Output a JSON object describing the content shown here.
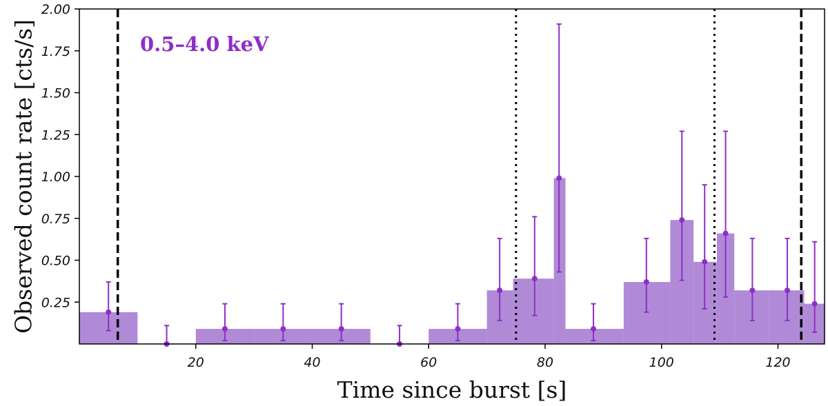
{
  "chart_data": {
    "type": "bar",
    "title": "",
    "annotation": "0.5–4.0 keV",
    "xlabel": "Time since burst [s]",
    "ylabel": "Observed count rate [cts/s]",
    "xlim": [
      0,
      128
    ],
    "ylim": [
      0,
      2.0
    ],
    "xticks": [
      20,
      40,
      60,
      80,
      100,
      120
    ],
    "yticks": [
      0.25,
      0.5,
      0.75,
      1.0,
      1.25,
      1.5,
      1.75,
      2.0
    ],
    "xtick_labels": [
      "20",
      "40",
      "60",
      "80",
      "100",
      "120"
    ],
    "ytick_labels": [
      "0.25",
      "0.50",
      "0.75",
      "1.00",
      "1.25",
      "1.50",
      "1.75",
      "2.00"
    ],
    "grid": false,
    "color": "#8e2fc7",
    "bar_color": "#b08ad6",
    "bins": [
      {
        "start": 0,
        "end": 10,
        "value": 0.19,
        "point_x": 5,
        "err_low": 0.08,
        "err_high": 0.37
      },
      {
        "start": 10,
        "end": 20,
        "value": 0.0,
        "point_x": 15,
        "err_low": 0.0,
        "err_high": 0.11
      },
      {
        "start": 20,
        "end": 30,
        "value": 0.09,
        "point_x": 25,
        "err_low": 0.02,
        "err_high": 0.24
      },
      {
        "start": 30,
        "end": 40,
        "value": 0.09,
        "point_x": 35,
        "err_low": 0.02,
        "err_high": 0.24
      },
      {
        "start": 40,
        "end": 50,
        "value": 0.09,
        "point_x": 45,
        "err_low": 0.02,
        "err_high": 0.24
      },
      {
        "start": 50,
        "end": 60,
        "value": 0.0,
        "point_x": 55,
        "err_low": 0.0,
        "err_high": 0.11
      },
      {
        "start": 60,
        "end": 70,
        "value": 0.09,
        "point_x": 65,
        "err_low": 0.02,
        "err_high": 0.24
      },
      {
        "start": 70,
        "end": 74.5,
        "value": 0.32,
        "point_x": 72.2,
        "err_low": 0.14,
        "err_high": 0.63
      },
      {
        "start": 74.5,
        "end": 81.5,
        "value": 0.39,
        "point_x": 78.2,
        "err_low": 0.17,
        "err_high": 0.76
      },
      {
        "start": 81.5,
        "end": 83.5,
        "value": 0.99,
        "point_x": 82.4,
        "err_low": 0.43,
        "err_high": 1.91
      },
      {
        "start": 83.5,
        "end": 93.5,
        "value": 0.09,
        "point_x": 88.3,
        "err_low": 0.02,
        "err_high": 0.24
      },
      {
        "start": 93.5,
        "end": 101.5,
        "value": 0.37,
        "point_x": 97.4,
        "err_low": 0.19,
        "err_high": 0.63
      },
      {
        "start": 101.5,
        "end": 105.5,
        "value": 0.74,
        "point_x": 103.5,
        "err_low": 0.38,
        "err_high": 1.27
      },
      {
        "start": 105.5,
        "end": 109.5,
        "value": 0.49,
        "point_x": 107.4,
        "err_low": 0.21,
        "err_high": 0.95
      },
      {
        "start": 109.5,
        "end": 112.5,
        "value": 0.66,
        "point_x": 111.0,
        "err_low": 0.28,
        "err_high": 1.27
      },
      {
        "start": 112.5,
        "end": 118.5,
        "value": 0.32,
        "point_x": 115.6,
        "err_low": 0.14,
        "err_high": 0.63
      },
      {
        "start": 118.5,
        "end": 124.5,
        "value": 0.32,
        "point_x": 121.6,
        "err_low": 0.14,
        "err_high": 0.63
      },
      {
        "start": 124.5,
        "end": 128,
        "value": 0.24,
        "point_x": 126.3,
        "err_low": 0.07,
        "err_high": 0.61
      }
    ],
    "vlines": [
      {
        "x": 6.6,
        "style": "dashed"
      },
      {
        "x": 75.0,
        "style": "dotted"
      },
      {
        "x": 109.1,
        "style": "dotted"
      },
      {
        "x": 124.0,
        "style": "dashed"
      }
    ]
  }
}
